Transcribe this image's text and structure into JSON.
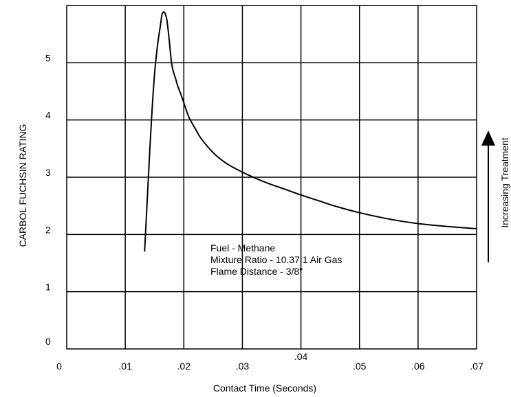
{
  "chart_data": {
    "type": "line",
    "title": "",
    "xlabel": "Contact Time (Seconds)",
    "ylabel": "CARBOL FUCHSIN RATING",
    "xlim": [
      0,
      0.07
    ],
    "ylim": [
      0,
      6
    ],
    "x_ticks": [
      0,
      0.01,
      0.02,
      0.03,
      0.04,
      0.05,
      0.06,
      0.07
    ],
    "x_tick_labels": [
      "0",
      ".01",
      ".02",
      ".03",
      ".04",
      ".05",
      ".06",
      ".07"
    ],
    "y_ticks": [
      0,
      1,
      2,
      3,
      4,
      5
    ],
    "y_tick_labels": [
      "0",
      "1",
      "2",
      "3",
      "4",
      "5"
    ],
    "grid": true,
    "legend": "none",
    "series": [
      {
        "color": "#000000",
        "x": [
          0.0133,
          0.0136,
          0.014,
          0.0145,
          0.015,
          0.0155,
          0.016,
          0.0163,
          0.0167,
          0.0171,
          0.0175,
          0.0179,
          0.0182,
          0.0186,
          0.019,
          0.0195,
          0.02,
          0.0205,
          0.021,
          0.022,
          0.023,
          0.025,
          0.027,
          0.029,
          0.031,
          0.033,
          0.035,
          0.037,
          0.04,
          0.043,
          0.046,
          0.05,
          0.055,
          0.06,
          0.065,
          0.07
        ],
        "y": [
          1.7,
          2.3,
          3.1,
          4.05,
          4.8,
          5.3,
          5.65,
          5.85,
          5.88,
          5.75,
          5.4,
          5.0,
          4.85,
          4.72,
          4.58,
          4.45,
          4.3,
          4.15,
          4.02,
          3.84,
          3.67,
          3.43,
          3.26,
          3.14,
          3.04,
          2.95,
          2.87,
          2.8,
          2.69,
          2.59,
          2.49,
          2.38,
          2.27,
          2.19,
          2.14,
          2.1
        ]
      }
    ],
    "annotations": [
      "Fuel - Methane",
      "Mixture Ratio -  10.37:1 Air Gas",
      "Flame Distance - 3/8\""
    ],
    "side_label": "Increasing Treatment"
  }
}
